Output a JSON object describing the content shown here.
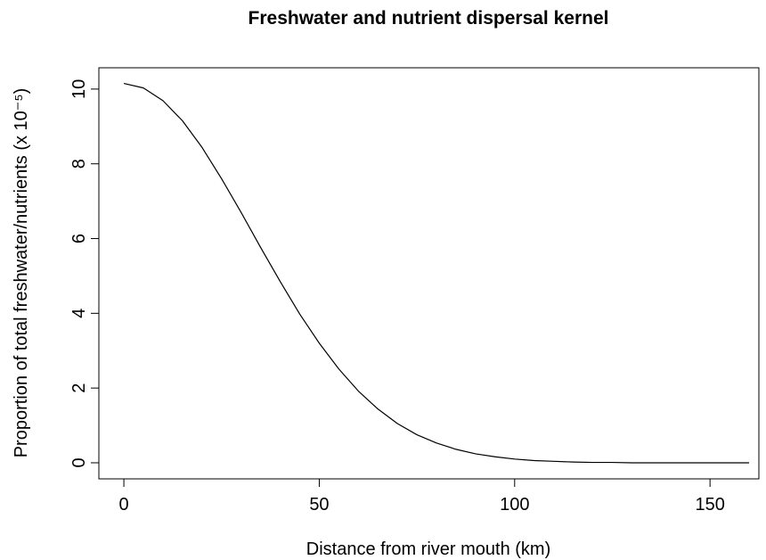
{
  "chart_data": {
    "type": "line",
    "title": "Freshwater and nutrient dispersal kernel",
    "x_label": "Distance from river mouth (km)",
    "y_label": "Proportion of total freshwater/nutrients  (x 10⁻⁵)",
    "x": [
      0,
      5,
      10,
      15,
      20,
      25,
      30,
      35,
      40,
      45,
      50,
      55,
      60,
      65,
      70,
      75,
      80,
      85,
      90,
      95,
      100,
      105,
      110,
      115,
      120,
      125,
      130,
      135,
      140,
      145,
      150,
      155,
      160
    ],
    "series": [
      {
        "name": "kernel",
        "color": "#000000",
        "values": [
          10.15,
          10.03,
          9.69,
          9.15,
          8.44,
          7.6,
          6.7,
          5.76,
          4.85,
          3.98,
          3.2,
          2.51,
          1.92,
          1.44,
          1.05,
          0.75,
          0.53,
          0.36,
          0.24,
          0.16,
          0.1,
          0.06,
          0.04,
          0.02,
          0.01,
          0.01,
          0,
          0,
          0,
          0,
          0,
          0,
          0
        ]
      }
    ],
    "xlim": [
      -6.4,
      162.5
    ],
    "ylim": [
      -0.43,
      10.57
    ],
    "xticks": [
      0,
      50,
      100,
      150
    ],
    "yticks": [
      0,
      2,
      4,
      6,
      8,
      10
    ]
  }
}
